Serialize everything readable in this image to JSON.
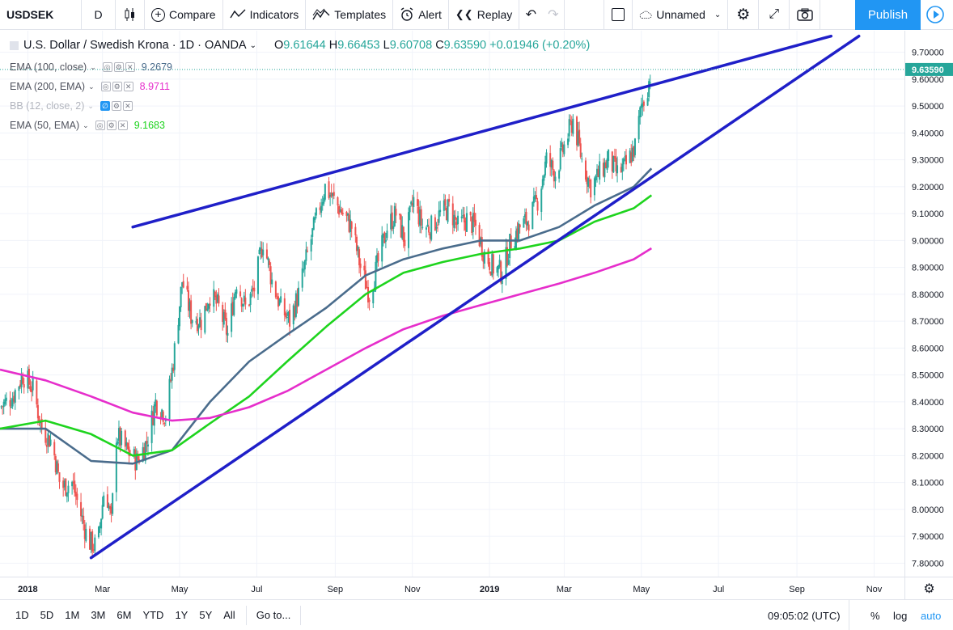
{
  "toolbar": {
    "symbol": "USDSEK",
    "interval": "D",
    "compare": "Compare",
    "indicators": "Indicators",
    "templates": "Templates",
    "alert": "Alert",
    "replay": "Replay",
    "layout_name": "Unnamed",
    "publish": "Publish"
  },
  "legend": {
    "title": "U.S. Dollar / Swedish Krona · 1D · OANDA",
    "open_label": "O",
    "open": "9.61644",
    "high_label": "H",
    "high": "9.66453",
    "low_label": "L",
    "low": "9.60708",
    "close_label": "C",
    "close": "9.63590",
    "change": "+0.01946 (+0.20%)",
    "indicators": [
      {
        "label": "EMA (100, close)",
        "value": "9.2679",
        "color": "#4a6c8c"
      },
      {
        "label": "EMA (200, EMA)",
        "value": "8.9711",
        "color": "#e62ecb"
      },
      {
        "label": "BB (12, close, 2)",
        "value": "",
        "color": "#2196f3"
      },
      {
        "label": "EMA (50, EMA)",
        "value": "9.1683",
        "color": "#1ed41e"
      }
    ]
  },
  "price_scale": {
    "ticks": [
      9.7,
      9.6,
      9.5,
      9.4,
      9.3,
      9.2,
      9.1,
      9.0,
      8.9,
      8.8,
      8.7,
      8.6,
      8.5,
      8.4,
      8.3,
      8.2,
      8.1,
      8.0,
      7.9,
      7.8
    ],
    "tick_labels": [
      "9.70000",
      "9.60000",
      "9.50000",
      "9.40000",
      "9.30000",
      "9.20000",
      "9.10000",
      "9.00000",
      "8.90000",
      "8.80000",
      "8.70000",
      "8.60000",
      "8.50000",
      "8.40000",
      "8.30000",
      "8.20000",
      "8.10000",
      "8.00000",
      "7.90000",
      "7.80000"
    ],
    "last_price": "9.63590",
    "last_price_color": "#26a69a"
  },
  "time_scale": {
    "labels": [
      "2018",
      "Mar",
      "May",
      "Jul",
      "Sep",
      "Nov",
      "2019",
      "Mar",
      "May",
      "Jul",
      "Sep",
      "Nov"
    ],
    "bold": [
      "2018",
      "2019"
    ]
  },
  "bottom": {
    "ranges": [
      "1D",
      "5D",
      "1M",
      "3M",
      "6M",
      "YTD",
      "1Y",
      "5Y",
      "All"
    ],
    "goto": "Go to...",
    "clock": "09:05:02 (UTC)",
    "percent": "%",
    "log": "log",
    "auto": "auto"
  },
  "chart_data": {
    "type": "candlestick",
    "title": "U.S. Dollar / Swedish Krona · 1D · OANDA",
    "ylim": [
      7.75,
      9.78
    ],
    "x_range": [
      "2017-12-10",
      "2019-11-25"
    ],
    "series": [
      {
        "name": "USDSEK",
        "kind": "candles",
        "up_color": "#26a69a",
        "down_color": "#ef5350",
        "close_path": [
          [
            "2017-12-10",
            8.38
          ],
          [
            "2017-12-20",
            8.42
          ],
          [
            "2017-12-28",
            8.5
          ],
          [
            "2018-01-05",
            8.45
          ],
          [
            "2018-01-12",
            8.3
          ],
          [
            "2018-01-20",
            8.25
          ],
          [
            "2018-01-27",
            8.08
          ],
          [
            "2018-02-05",
            8.1
          ],
          [
            "2018-02-12",
            7.98
          ],
          [
            "2018-02-18",
            7.88
          ],
          [
            "2018-02-25",
            7.86
          ],
          [
            "2018-03-03",
            8.1
          ],
          [
            "2018-03-08",
            7.95
          ],
          [
            "2018-03-12",
            8.28
          ],
          [
            "2018-03-20",
            8.22
          ],
          [
            "2018-03-28",
            8.18
          ],
          [
            "2018-04-05",
            8.25
          ],
          [
            "2018-04-12",
            8.4
          ],
          [
            "2018-04-20",
            8.35
          ],
          [
            "2018-04-26",
            8.55
          ],
          [
            "2018-05-03",
            8.85
          ],
          [
            "2018-05-10",
            8.72
          ],
          [
            "2018-05-18",
            8.7
          ],
          [
            "2018-05-25",
            8.8
          ],
          [
            "2018-06-01",
            8.75
          ],
          [
            "2018-06-08",
            8.65
          ],
          [
            "2018-06-15",
            8.85
          ],
          [
            "2018-06-22",
            8.75
          ],
          [
            "2018-06-29",
            8.82
          ],
          [
            "2018-07-06",
            9.0
          ],
          [
            "2018-07-13",
            8.85
          ],
          [
            "2018-07-20",
            8.75
          ],
          [
            "2018-07-27",
            8.7
          ],
          [
            "2018-08-03",
            8.8
          ],
          [
            "2018-08-10",
            8.95
          ],
          [
            "2018-08-17",
            9.08
          ],
          [
            "2018-08-24",
            9.2
          ],
          [
            "2018-08-31",
            9.15
          ],
          [
            "2018-09-07",
            9.1
          ],
          [
            "2018-09-14",
            9.05
          ],
          [
            "2018-09-21",
            8.9
          ],
          [
            "2018-09-28",
            8.8
          ],
          [
            "2018-10-05",
            8.92
          ],
          [
            "2018-10-12",
            9.05
          ],
          [
            "2018-10-19",
            9.1
          ],
          [
            "2018-10-26",
            9.0
          ],
          [
            "2018-11-02",
            9.15
          ],
          [
            "2018-11-09",
            9.05
          ],
          [
            "2018-11-16",
            9.05
          ],
          [
            "2018-11-23",
            9.1
          ],
          [
            "2018-11-30",
            9.12
          ],
          [
            "2018-12-07",
            9.05
          ],
          [
            "2018-12-14",
            9.08
          ],
          [
            "2018-12-21",
            9.05
          ],
          [
            "2018-12-28",
            8.95
          ],
          [
            "2019-01-04",
            8.9
          ],
          [
            "2019-01-11",
            8.88
          ],
          [
            "2019-01-18",
            9.0
          ],
          [
            "2019-01-25",
            9.05
          ],
          [
            "2019-02-01",
            9.08
          ],
          [
            "2019-02-08",
            9.15
          ],
          [
            "2019-02-15",
            9.3
          ],
          [
            "2019-02-22",
            9.25
          ],
          [
            "2019-03-01",
            9.35
          ],
          [
            "2019-03-08",
            9.45
          ],
          [
            "2019-03-15",
            9.3
          ],
          [
            "2019-03-22",
            9.2
          ],
          [
            "2019-03-29",
            9.25
          ],
          [
            "2019-04-05",
            9.3
          ],
          [
            "2019-04-12",
            9.25
          ],
          [
            "2019-04-19",
            9.28
          ],
          [
            "2019-04-26",
            9.35
          ],
          [
            "2019-05-01",
            9.5
          ],
          [
            "2019-05-05",
            9.55
          ],
          [
            "2019-05-09",
            9.6359
          ]
        ]
      },
      {
        "name": "EMA (100, close)",
        "kind": "line",
        "color": "#4a6c8c",
        "points": [
          [
            "2017-12-10",
            8.3
          ],
          [
            "2018-01-15",
            8.3
          ],
          [
            "2018-02-20",
            8.18
          ],
          [
            "2018-03-25",
            8.17
          ],
          [
            "2018-04-25",
            8.22
          ],
          [
            "2018-05-25",
            8.4
          ],
          [
            "2018-06-25",
            8.55
          ],
          [
            "2018-07-25",
            8.65
          ],
          [
            "2018-08-25",
            8.75
          ],
          [
            "2018-09-25",
            8.87
          ],
          [
            "2018-10-25",
            8.93
          ],
          [
            "2018-11-25",
            8.97
          ],
          [
            "2018-12-25",
            9.0
          ],
          [
            "2019-01-25",
            9.0
          ],
          [
            "2019-02-25",
            9.05
          ],
          [
            "2019-03-25",
            9.13
          ],
          [
            "2019-04-25",
            9.2
          ],
          [
            "2019-05-09",
            9.2679
          ]
        ]
      },
      {
        "name": "EMA (50, EMA)",
        "kind": "line",
        "color": "#1ed41e",
        "points": [
          [
            "2017-12-10",
            8.3
          ],
          [
            "2018-01-15",
            8.33
          ],
          [
            "2018-02-20",
            8.28
          ],
          [
            "2018-03-25",
            8.2
          ],
          [
            "2018-04-25",
            8.22
          ],
          [
            "2018-05-25",
            8.32
          ],
          [
            "2018-06-25",
            8.42
          ],
          [
            "2018-07-25",
            8.55
          ],
          [
            "2018-08-25",
            8.68
          ],
          [
            "2018-09-25",
            8.8
          ],
          [
            "2018-10-25",
            8.88
          ],
          [
            "2018-11-25",
            8.92
          ],
          [
            "2018-12-25",
            8.95
          ],
          [
            "2019-01-25",
            8.97
          ],
          [
            "2019-02-25",
            9.0
          ],
          [
            "2019-03-25",
            9.07
          ],
          [
            "2019-04-25",
            9.12
          ],
          [
            "2019-05-09",
            9.1683
          ]
        ]
      },
      {
        "name": "EMA (200, EMA)",
        "kind": "line",
        "color": "#e62ecb",
        "points": [
          [
            "2017-12-10",
            8.52
          ],
          [
            "2018-01-15",
            8.48
          ],
          [
            "2018-02-20",
            8.42
          ],
          [
            "2018-03-25",
            8.36
          ],
          [
            "2018-04-25",
            8.33
          ],
          [
            "2018-05-25",
            8.34
          ],
          [
            "2018-06-25",
            8.38
          ],
          [
            "2018-07-25",
            8.44
          ],
          [
            "2018-08-25",
            8.52
          ],
          [
            "2018-09-25",
            8.6
          ],
          [
            "2018-10-25",
            8.67
          ],
          [
            "2018-11-25",
            8.72
          ],
          [
            "2018-12-25",
            8.76
          ],
          [
            "2019-01-25",
            8.8
          ],
          [
            "2019-02-25",
            8.84
          ],
          [
            "2019-03-25",
            8.88
          ],
          [
            "2019-04-25",
            8.93
          ],
          [
            "2019-05-09",
            8.9711
          ]
        ]
      }
    ],
    "trendlines": [
      {
        "name": "upper-trendline",
        "color": "#1f1fc8",
        "from": [
          "2018-03-25",
          9.05
        ],
        "to": [
          "2019-09-28",
          9.76
        ]
      },
      {
        "name": "lower-trendline",
        "color": "#1f1fc8",
        "from": [
          "2018-02-20",
          7.82
        ],
        "to": [
          "2019-10-20",
          9.76
        ]
      }
    ]
  }
}
